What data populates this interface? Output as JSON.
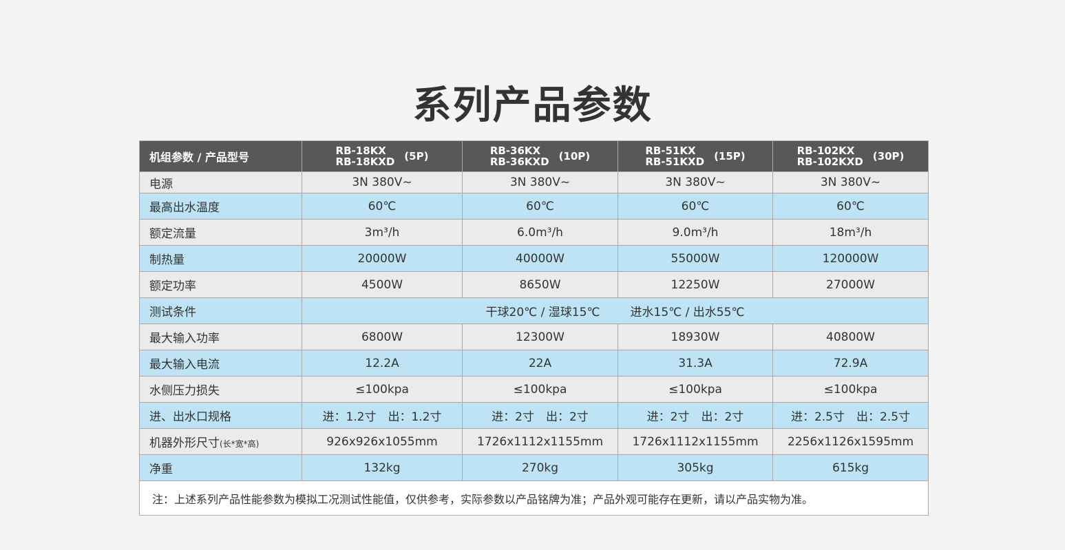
{
  "title": "系列产品参数",
  "table": {
    "header": {
      "corner": "机组参数 / 产品型号",
      "columns": [
        {
          "models": [
            "RB-18KX",
            "RB-18KXD"
          ],
          "power": "(5P)"
        },
        {
          "models": [
            "RB-36KX",
            "RB-36KXD"
          ],
          "power": "(10P)"
        },
        {
          "models": [
            "RB-51KX",
            "RB-51KXD"
          ],
          "power": "(15P)"
        },
        {
          "models": [
            "RB-102KX",
            "RB-102KXD"
          ],
          "power": "(30P)"
        }
      ]
    },
    "rows": [
      {
        "label": "电源",
        "values": [
          "3N 380V~",
          "3N 380V~",
          "3N 380V~",
          "3N 380V~"
        ]
      },
      {
        "label": "最高出水温度",
        "values": [
          "60℃",
          "60℃",
          "60℃",
          "60℃"
        ]
      },
      {
        "label": "额定流量",
        "values": [
          "3m³/h",
          "6.0m³/h",
          "9.0m³/h",
          "18m³/h"
        ]
      },
      {
        "label": "制热量",
        "values": [
          "20000W",
          "40000W",
          "55000W",
          "120000W"
        ]
      },
      {
        "label": "额定功率",
        "values": [
          "4500W",
          "8650W",
          "12250W",
          "27000W"
        ]
      },
      {
        "label": "测试条件",
        "merged": [
          "干球20℃ / 湿球15℃",
          "进水15℃ / 出水55℃"
        ]
      },
      {
        "label": "最大输入功率",
        "values": [
          "6800W",
          "12300W",
          "18930W",
          "40800W"
        ]
      },
      {
        "label": "最大输入电流",
        "values": [
          "12.2A",
          "22A",
          "31.3A",
          "72.9A"
        ]
      },
      {
        "label": "水侧压力损失",
        "values": [
          "≤100kpa",
          "≤100kpa",
          "≤100kpa",
          "≤100kpa"
        ]
      },
      {
        "label": "进、出水口规格",
        "values": [
          "进：1.2寸　出：1.2寸",
          "进：2寸　出：2寸",
          "进：2寸　出：2寸",
          "进：2.5寸　出：2.5寸"
        ]
      },
      {
        "label": "机器外形尺寸",
        "label_note": "(长*宽*高)",
        "values": [
          "926x926x1055mm",
          "1726x1112x1155mm",
          "1726x1112x1155mm",
          "2256x1126x1595mm"
        ]
      },
      {
        "label": "净重",
        "values": [
          "132kg",
          "270kg",
          "305kg",
          "615kg"
        ]
      }
    ],
    "note": "注：上述系列产品性能参数为模拟工况测试性能值，仅供参考，实际参数以产品铭牌为准；产品外观可能存在更新，请以产品实物为准。"
  }
}
